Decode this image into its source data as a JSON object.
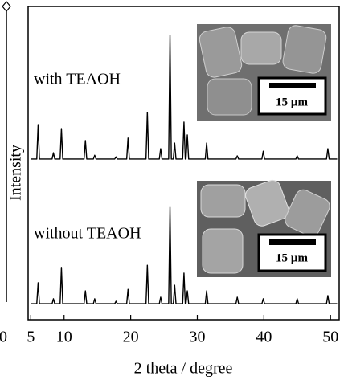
{
  "chart_data": {
    "type": "line",
    "x": [
      5,
      5.9,
      6.1,
      6.3,
      8.2,
      8.4,
      8.6,
      9.4,
      9.6,
      9.8,
      13.0,
      13.2,
      13.4,
      14.4,
      14.6,
      14.8,
      17.6,
      17.8,
      18.0,
      19.4,
      19.6,
      19.8,
      22.3,
      22.5,
      22.7,
      24.3,
      24.5,
      24.7,
      25.7,
      25.9,
      26.1,
      26.4,
      26.6,
      26.8,
      27.8,
      28.0,
      28.2,
      28.3,
      28.5,
      28.7,
      31.2,
      31.4,
      31.6,
      35.8,
      36.0,
      36.2,
      39.7,
      39.9,
      40.1,
      44.8,
      45.0,
      45.2,
      49.4,
      49.6,
      49.8,
      51
    ],
    "series": [
      {
        "name": "with TEAOH",
        "color": "#000000",
        "values": [
          51.3,
          51.3,
          62.3,
          51.3,
          51.3,
          53.3,
          51.3,
          51.3,
          61,
          51.3,
          51.3,
          57.2,
          51.3,
          51.3,
          52.5,
          51.3,
          51.3,
          52,
          51.3,
          51.3,
          58,
          51.3,
          51.3,
          66.2,
          51.3,
          51.3,
          54.6,
          51.3,
          51.3,
          90.8,
          51.3,
          51.3,
          56.4,
          51.3,
          51.3,
          63.1,
          51.3,
          51.3,
          59,
          51.3,
          51.3,
          56.4,
          51.3,
          51.3,
          52.3,
          51.3,
          51.3,
          53.8,
          51.3,
          51.3,
          52.3,
          51.3,
          51.3,
          54.6,
          51.3,
          51.3
        ]
      },
      {
        "name": "without TEAOH",
        "color": "#000000",
        "values": [
          5.1,
          5.1,
          11.8,
          5.1,
          5.1,
          6.7,
          5.1,
          5.1,
          16.7,
          5.1,
          5.1,
          9.2,
          5.1,
          5.1,
          6.7,
          5.1,
          5.1,
          5.9,
          5.1,
          5.1,
          9.7,
          5.1,
          5.1,
          17.4,
          5.1,
          5.1,
          7.2,
          5.1,
          5.1,
          35.9,
          5.1,
          5.1,
          11,
          5.1,
          5.1,
          14.9,
          5.1,
          5.1,
          9.2,
          5.1,
          5.1,
          9.2,
          5.1,
          5.1,
          7.2,
          5.1,
          5.1,
          6.7,
          5.1,
          5.1,
          6.7,
          5.1,
          5.1,
          7.7,
          5.1,
          5.1
        ]
      }
    ],
    "xlim": [
      4.6,
      51.3
    ],
    "xticks": [
      5,
      10,
      20,
      30,
      40,
      50
    ],
    "ylim": [
      0,
      100
    ],
    "xlabel": "2 theta / degree",
    "ylabel": "Intensity",
    "inset_scale_labels": [
      "15 µm",
      "15 µm"
    ],
    "left_edge_text": "0"
  }
}
